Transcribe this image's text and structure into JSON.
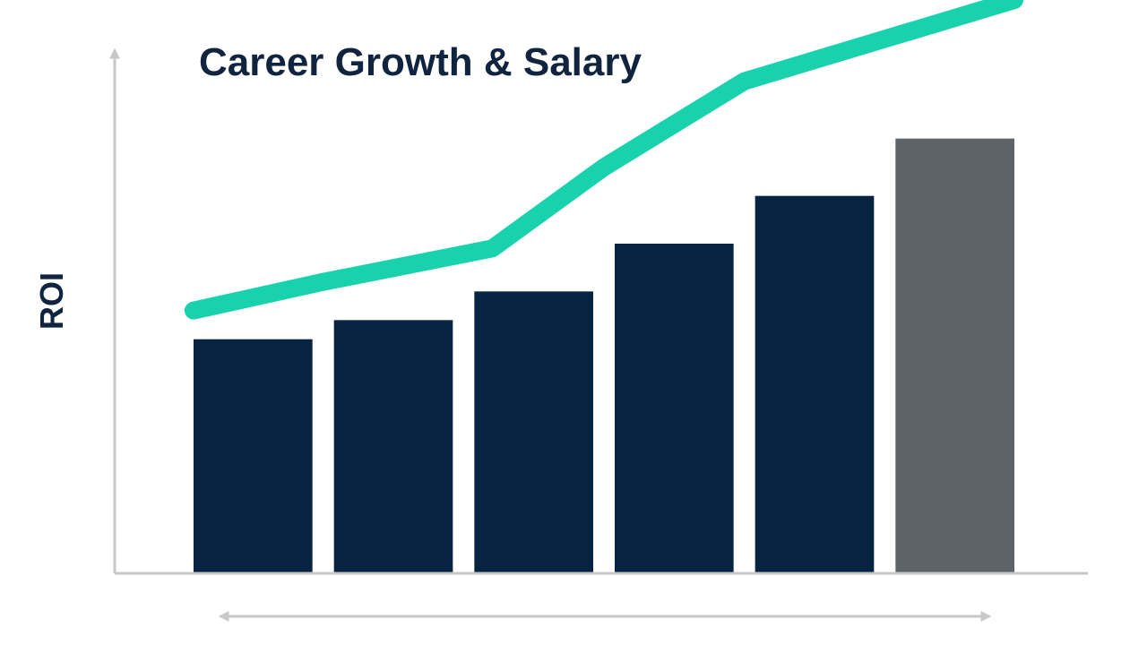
{
  "chart_data": {
    "type": "bar",
    "title": "Career Growth & Salary",
    "xlabel": "",
    "ylabel": "ROI",
    "categories": [
      "",
      "",
      "",
      "",
      "",
      ""
    ],
    "series": [
      {
        "values": [
          49,
          53,
          59,
          69,
          79,
          91
        ]
      }
    ],
    "trend_line": [
      55,
      61,
      68,
      85,
      103,
      120
    ],
    "ylim": [
      0,
      120
    ],
    "grid": false,
    "legend": "none",
    "colors": {
      "bar": "#062442",
      "bar_highlight": "#5e6368",
      "trend": "#18d2ad",
      "axis": "#c8c8c8",
      "text": "#10243f"
    },
    "highlight_index": 5,
    "x_axis_double_arrow": true
  }
}
